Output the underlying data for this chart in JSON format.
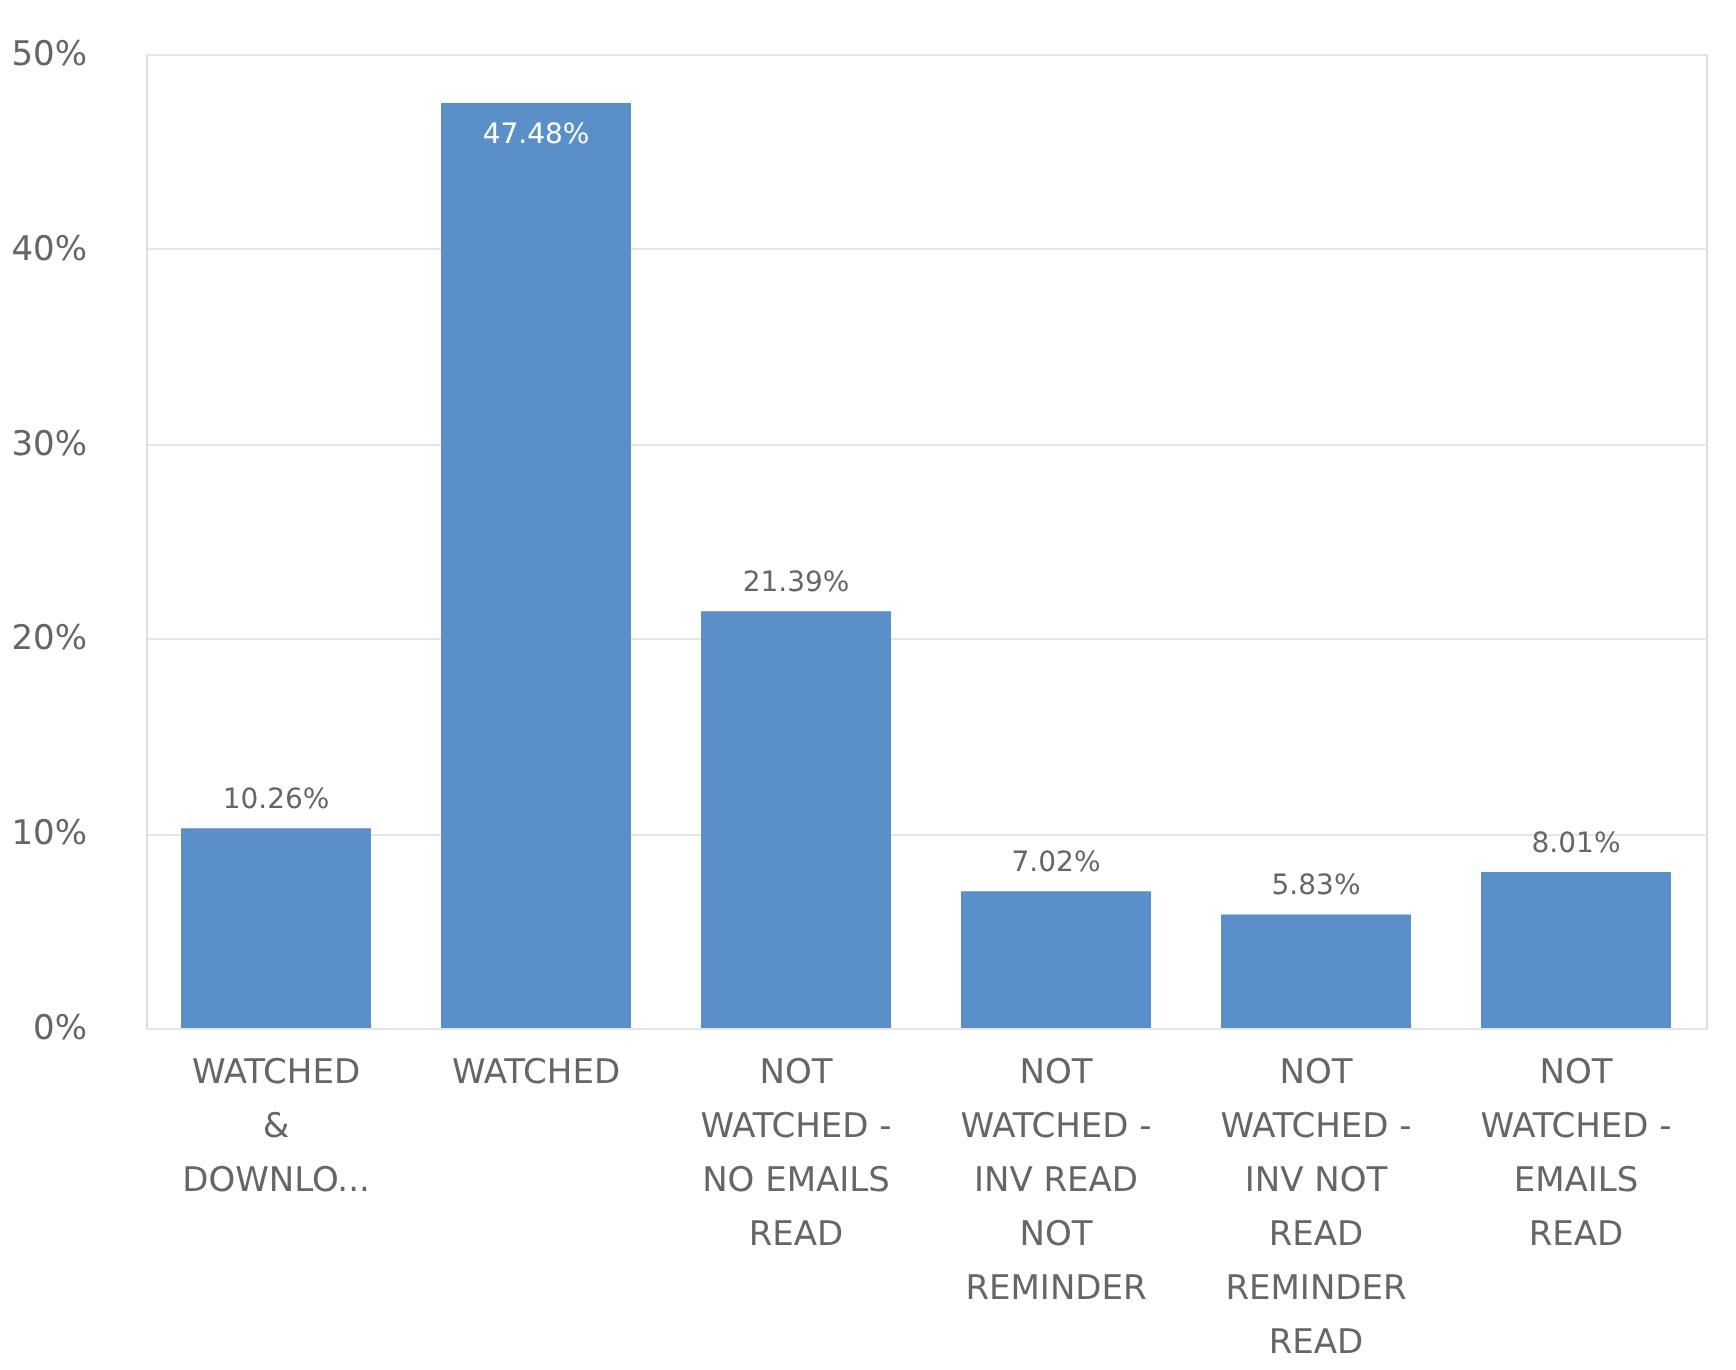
{
  "chart_data": {
    "type": "bar",
    "categories": [
      "WATCHED & DOWNLO...",
      "WATCHED",
      "NOT WATCHED - NO EMAILS READ",
      "NOT WATCHED - INV READ NOT REMINDER",
      "NOT WATCHED - INV NOT READ REMINDER READ",
      "NOT WATCHED - EMAILS READ"
    ],
    "values": [
      10.26,
      47.48,
      21.39,
      7.02,
      5.83,
      8.01
    ],
    "value_labels": [
      "10.26%",
      "47.48%",
      "21.39%",
      "7.02%",
      "5.83%",
      "8.01%"
    ],
    "color": "#5b8fc9",
    "ylim": [
      0,
      50
    ],
    "yticks": [
      {
        "value": 0,
        "label": "0%"
      },
      {
        "value": 10,
        "label": "10%"
      },
      {
        "value": 20,
        "label": "20%"
      },
      {
        "value": 30,
        "label": "30%"
      },
      {
        "value": 40,
        "label": "40%"
      },
      {
        "value": 50,
        "label": "50%"
      }
    ],
    "grid": "y"
  }
}
